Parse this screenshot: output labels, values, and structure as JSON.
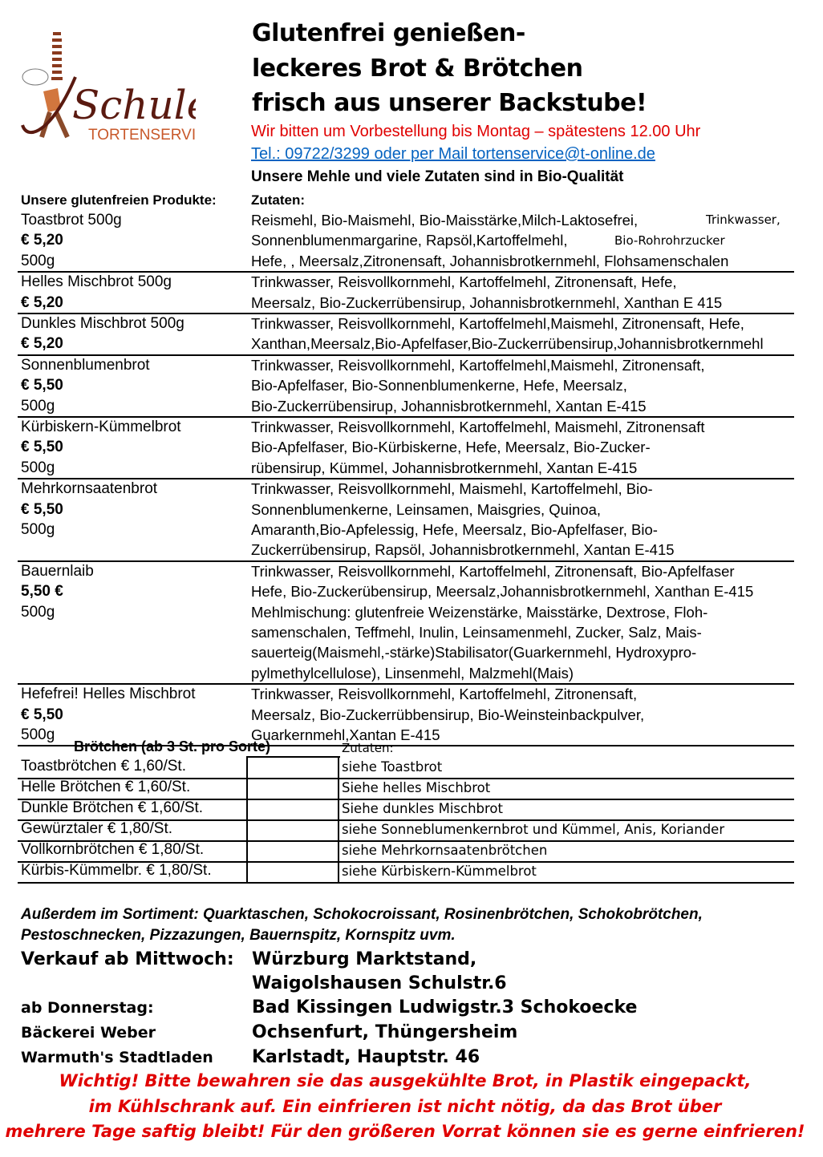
{
  "logo": {
    "name": "Schuler",
    "subtitle": "TORTENSERVICE",
    "colors": {
      "brown": "#5a1a10",
      "orange": "#c8582a"
    }
  },
  "header": {
    "title_lines": [
      "Glutenfrei genießen-",
      "leckeres Brot & Brötchen",
      "frisch aus unserer Backstube!"
    ],
    "order_note": "Wir bitten um Vorbestellung bis Montag – spätestens 12.00 Uhr",
    "contact_link": "Tel.: 09722/3299 oder per Mail tortenservice@t-online.de",
    "bio_note": "Unsere Mehle und viele Zutaten sind in Bio-Qualität"
  },
  "products_header": {
    "left": "Unsere glutenfreien Produkte:",
    "right": "Zutaten:"
  },
  "products": [
    {
      "name": "Toastbrot 500g",
      "price": "€ 5,20",
      "weight": "500g",
      "ingredients": [
        "Reismehl, Bio-Maismehl, Bio-Maisstärke,Milch-Laktosefrei,",
        "Sonnenblumenmargarine, Rapsöl,Kartoffelmehl,",
        "Hefe, , Meersalz,Zitronensaft, Johannisbrotkernmehl, Flohsamenschalen"
      ],
      "extras": [
        "Trinkwasser,",
        "Bio-Rohrohrzucker"
      ]
    },
    {
      "name": "Helles Mischbrot 500g",
      "price": "€ 5,20",
      "ingredients": [
        "Trinkwasser, Reisvollkornmehl, Kartoffelmehl, Zitronensaft, Hefe,",
        "Meersalz, Bio-Zuckerrübensirup, Johannisbrotkernmehl, Xanthan E 415"
      ]
    },
    {
      "name": "Dunkles Mischbrot 500g",
      "price": "€ 5,20",
      "ingredients": [
        "Trinkwasser, Reisvollkornmehl, Kartoffelmehl,Maismehl, Zitronensaft, Hefe,",
        "Xanthan,Meersalz,Bio-Apfelfaser,Bio-Zuckerrübensirup,Johannisbrotkernmehl"
      ]
    },
    {
      "name": "Sonnenblumenbrot",
      "price": "€ 5,50",
      "weight": "500g",
      "ingredients": [
        "Trinkwasser, Reisvollkornmehl, Kartoffelmehl,Maismehl, Zitronensaft,",
        "Bio-Apfelfaser, Bio-Sonnenblumenkerne, Hefe, Meersalz,",
        "Bio-Zuckerrübensirup, Johannisbrotkernmehl, Xantan E-415"
      ]
    },
    {
      "name": "Kürbiskern-Kümmelbrot",
      "price": "€ 5,50",
      "weight": "500g",
      "ingredients": [
        "Trinkwasser, Reisvollkornmehl, Kartoffelmehl, Maismehl, Zitronensaft",
        "Bio-Apfelfaser, Bio-Kürbiskerne, Hefe, Meersalz, Bio-Zucker-",
        "rübensirup, Kümmel, Johannisbrotkernmehl, Xantan E-415"
      ]
    },
    {
      "name": "Mehrkornsaatenbrot",
      "price": "€ 5,50",
      "weight": "500g",
      "ingredients": [
        "Trinkwasser, Reisvollkornmehl, Maismehl, Kartoffelmehl, Bio-",
        "Sonnenblumenkerne, Leinsamen, Maisgries, Quinoa,",
        "Amaranth,Bio-Apfelessig, Hefe, Meersalz, Bio-Apfelfaser, Bio-",
        "Zuckerrübensirup, Rapsöl, Johannisbrotkernmehl, Xantan E-415"
      ]
    },
    {
      "name": "Bauernlaib",
      "price": "5,50 €",
      "weight": "500g",
      "ingredients": [
        "Trinkwasser, Reisvollkornmehl, Kartoffelmehl, Zitronensaft, Bio-Apfelfaser",
        "Hefe, Bio-Zuckerübensirup, Meersalz,Johannisbrotkernmehl, Xanthan E-415",
        "Mehlmischung: glutenfreie Weizenstärke, Maisstärke, Dextrose, Floh-",
        "samenschalen, Teffmehl, Inulin, Leinsamenmehl, Zucker, Salz, Mais-",
        "sauerteig(Maismehl,-stärke)Stabilisator(Guarkernmehl, Hydroxypro-",
        "pylmethylcellulose), Linsenmehl, Malzmehl(Mais)"
      ]
    },
    {
      "name": "Hefefrei! Helles Mischbrot",
      "price": "€ 5,50",
      "weight": "500g",
      "ingredients": [
        "Trinkwasser, Reisvollkornmehl, Kartoffelmehl, Zitronensaft,",
        "Meersalz, Bio-Zuckerrübbensirup, Bio-Weinsteinbackpulver,",
        "Guarkernmehl,Xantan E-415"
      ]
    }
  ],
  "rolls": {
    "header": "Brötchen (ab 3 St. pro Sorte)",
    "ingredients_header": "Zutaten:",
    "items": [
      {
        "name": "Toastbrötchen € 1,60/St.",
        "ingredients": "siehe Toastbrot"
      },
      {
        "name": "Helle Brötchen € 1,60/St.",
        "ingredients": "Siehe helles Mischbrot"
      },
      {
        "name": "Dunkle Brötchen € 1,60/St.",
        "ingredients": "Siehe dunkles Mischbrot"
      },
      {
        "name": "Gewürztaler € 1,80/St.",
        "ingredients": "siehe Sonneblumenkernbrot und Kümmel, Anis, Koriander"
      },
      {
        "name": "Vollkornbrötchen € 1,80/St.",
        "ingredients": "siehe Mehrkornsaatenbrötchen"
      },
      {
        "name": "Kürbis-Kümmelbr. € 1,80/St.",
        "ingredients": "siehe Kürbiskern-Kümmelbrot"
      }
    ]
  },
  "assortment": [
    "Außerdem im Sortiment: Quarktaschen, Schokocroissant, Rosinenbrötchen, Schokobrötchen,",
    "Pestoschnecken, Pizzazungen, Bauernspitz, Kornspitz uvm."
  ],
  "sales": [
    {
      "label": "Verkauf ab Mittwoch:",
      "place": "Würzburg Marktstand,"
    },
    {
      "label": "",
      "place": "Waigolshausen Schulstr.6"
    },
    {
      "label": "ab Donnerstag:",
      "place": "Bad Kissingen Ludwigstr.3 Schokoecke"
    },
    {
      "label": "Bäckerei Weber",
      "place": "Ochsenfurt, Thüngersheim"
    },
    {
      "label": "Warmuth's Stadtladen",
      "place": "Karlstadt, Hauptstr. 46"
    }
  ],
  "warning": [
    "Wichtig! Bitte bewahren sie das ausgekühlte Brot, in Plastik eingepackt,",
    "im Kühlschrank auf. Ein einfrieren ist nicht nötig, da das Brot über",
    "mehrere Tage saftig bleibt! Für den größeren Vorrat können sie es gerne einfrieren!"
  ]
}
